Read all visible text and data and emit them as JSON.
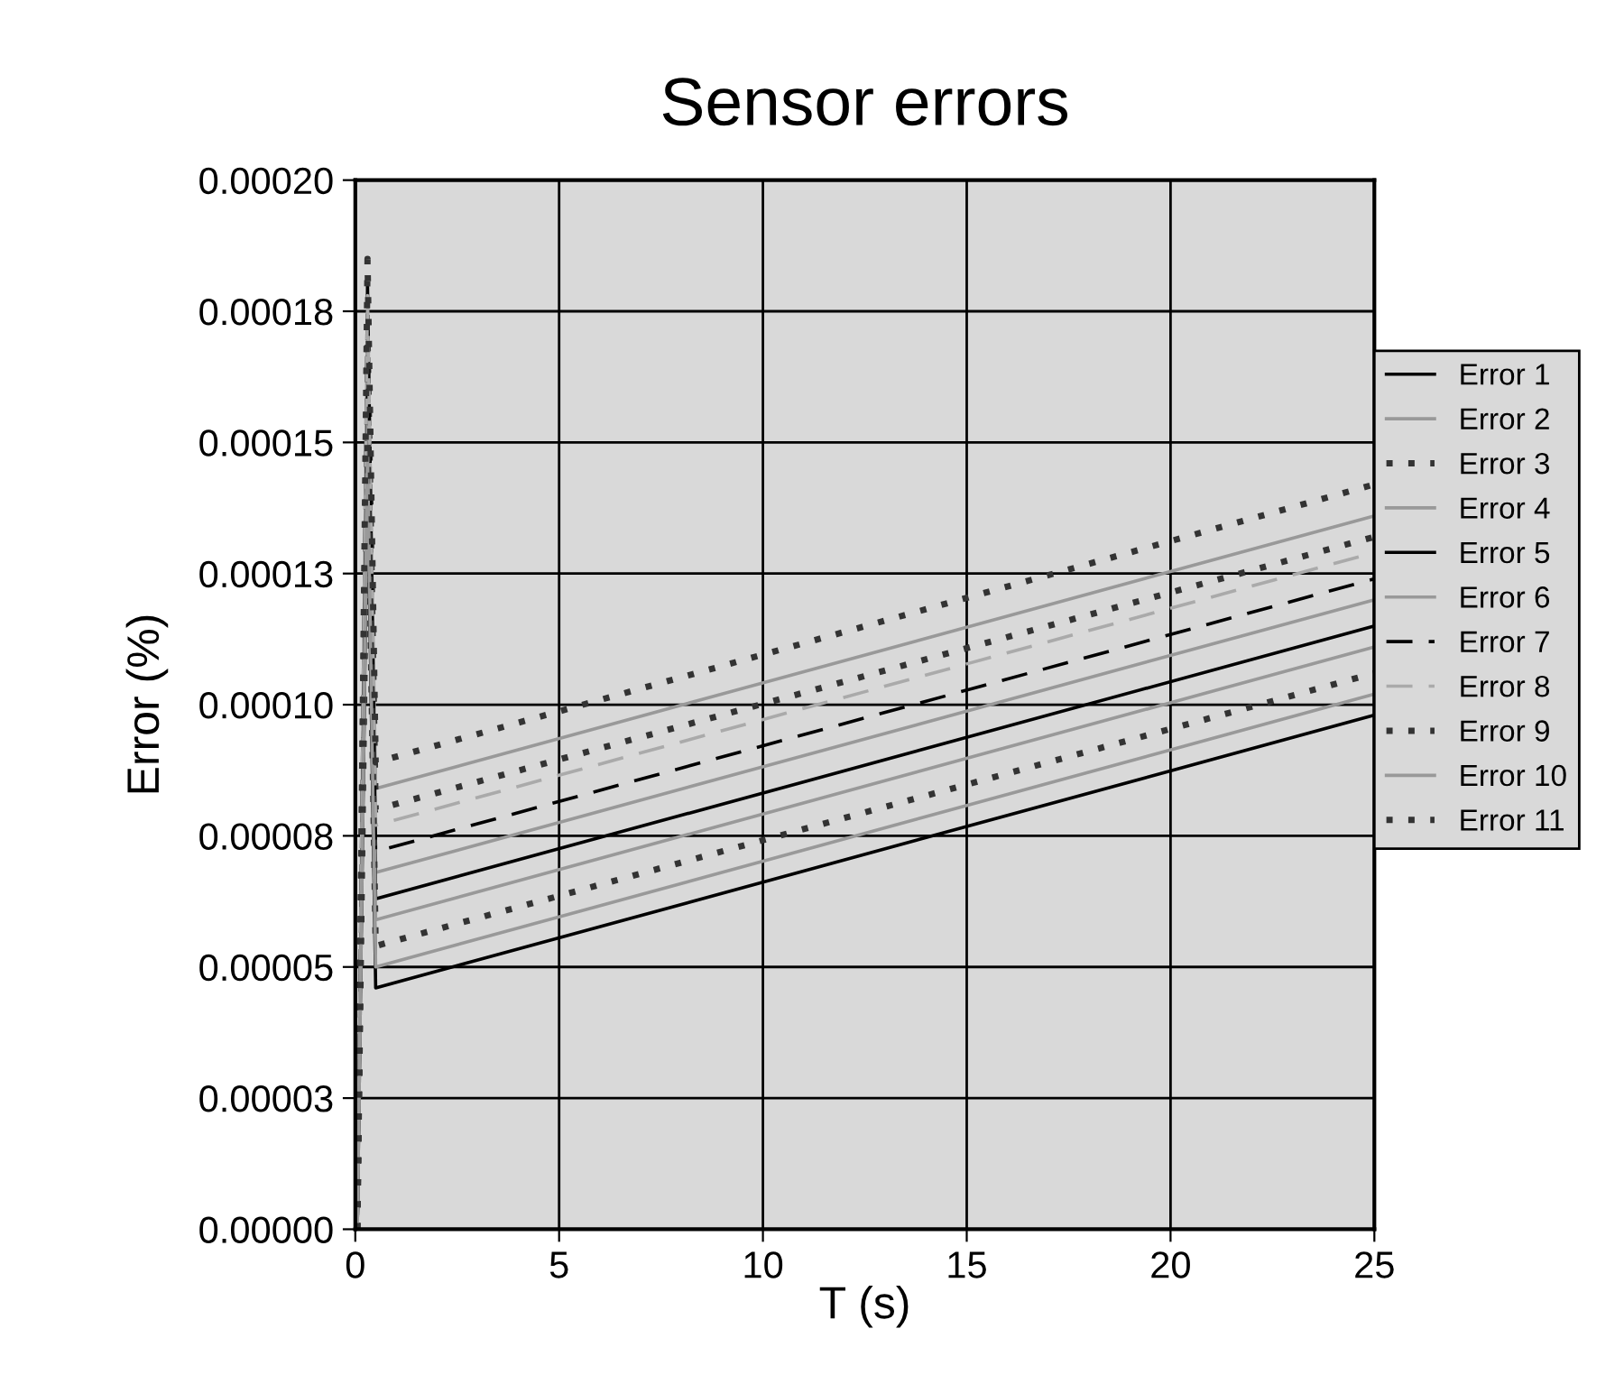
{
  "chart_data": {
    "type": "line",
    "title": "Sensor errors",
    "xlabel": "T (s)",
    "ylabel": "Error (%)",
    "xlim": [
      0,
      25
    ],
    "xticks": [
      0,
      5,
      10,
      15,
      20,
      25
    ],
    "ylim": [
      0,
      0.0002
    ],
    "yticks": [
      {
        "value": 0,
        "label": "0.00000"
      },
      {
        "value": 2.5e-05,
        "label": "0.00003"
      },
      {
        "value": 5e-05,
        "label": "0.00005"
      },
      {
        "value": 7.5e-05,
        "label": "0.00008"
      },
      {
        "value": 0.0001,
        "label": "0.00010"
      },
      {
        "value": 0.000125,
        "label": "0.00013"
      },
      {
        "value": 0.00015,
        "label": "0.00015"
      },
      {
        "value": 0.000175,
        "label": "0.00018"
      },
      {
        "value": 0.0002,
        "label": "0.00020"
      }
    ],
    "grid": true,
    "legend": "right",
    "marker": "none",
    "x": [
      0.05,
      0.3,
      0.5,
      25
    ],
    "series": [
      {
        "name": "Error 1",
        "color": "#000000",
        "line_style": "solid",
        "values": [
          0,
          0.000145,
          4.6e-05,
          9.8e-05
        ]
      },
      {
        "name": "Error 2",
        "color": "#999999",
        "line_style": "solid",
        "values": [
          0,
          0.000175,
          8.4e-05,
          0.000136
        ]
      },
      {
        "name": "Error 3",
        "color": "#333333",
        "line_style": "dotted",
        "values": [
          0,
          0.00017,
          8e-05,
          0.000132
        ]
      },
      {
        "name": "Error 4",
        "color": "#999999",
        "line_style": "solid",
        "values": [
          0,
          0.000165,
          6.8e-05,
          0.00012
        ]
      },
      {
        "name": "Error 5",
        "color": "#000000",
        "line_style": "solid",
        "values": [
          0,
          0.00016,
          6.3e-05,
          0.000115
        ]
      },
      {
        "name": "Error 6",
        "color": "#999999",
        "line_style": "solid",
        "values": [
          0,
          0.000155,
          5.9e-05,
          0.000111
        ]
      },
      {
        "name": "Error 7",
        "color": "#000000",
        "line_style": "dashed",
        "values": [
          0,
          0.00018,
          7.2e-05,
          0.000124
        ]
      },
      {
        "name": "Error 8",
        "color": "#aaaaaa",
        "line_style": "dashed",
        "values": [
          0,
          0.000178,
          7.7e-05,
          0.000129
        ]
      },
      {
        "name": "Error 9",
        "color": "#333333",
        "line_style": "dotted",
        "values": [
          0,
          0.00015,
          5.4e-05,
          0.000106
        ]
      },
      {
        "name": "Error 10",
        "color": "#999999",
        "line_style": "solid",
        "values": [
          0,
          0.000148,
          5e-05,
          0.000102
        ]
      },
      {
        "name": "Error 11",
        "color": "#333333",
        "line_style": "dotted",
        "values": [
          0,
          0.000185,
          8.9e-05,
          0.000142
        ]
      }
    ]
  }
}
